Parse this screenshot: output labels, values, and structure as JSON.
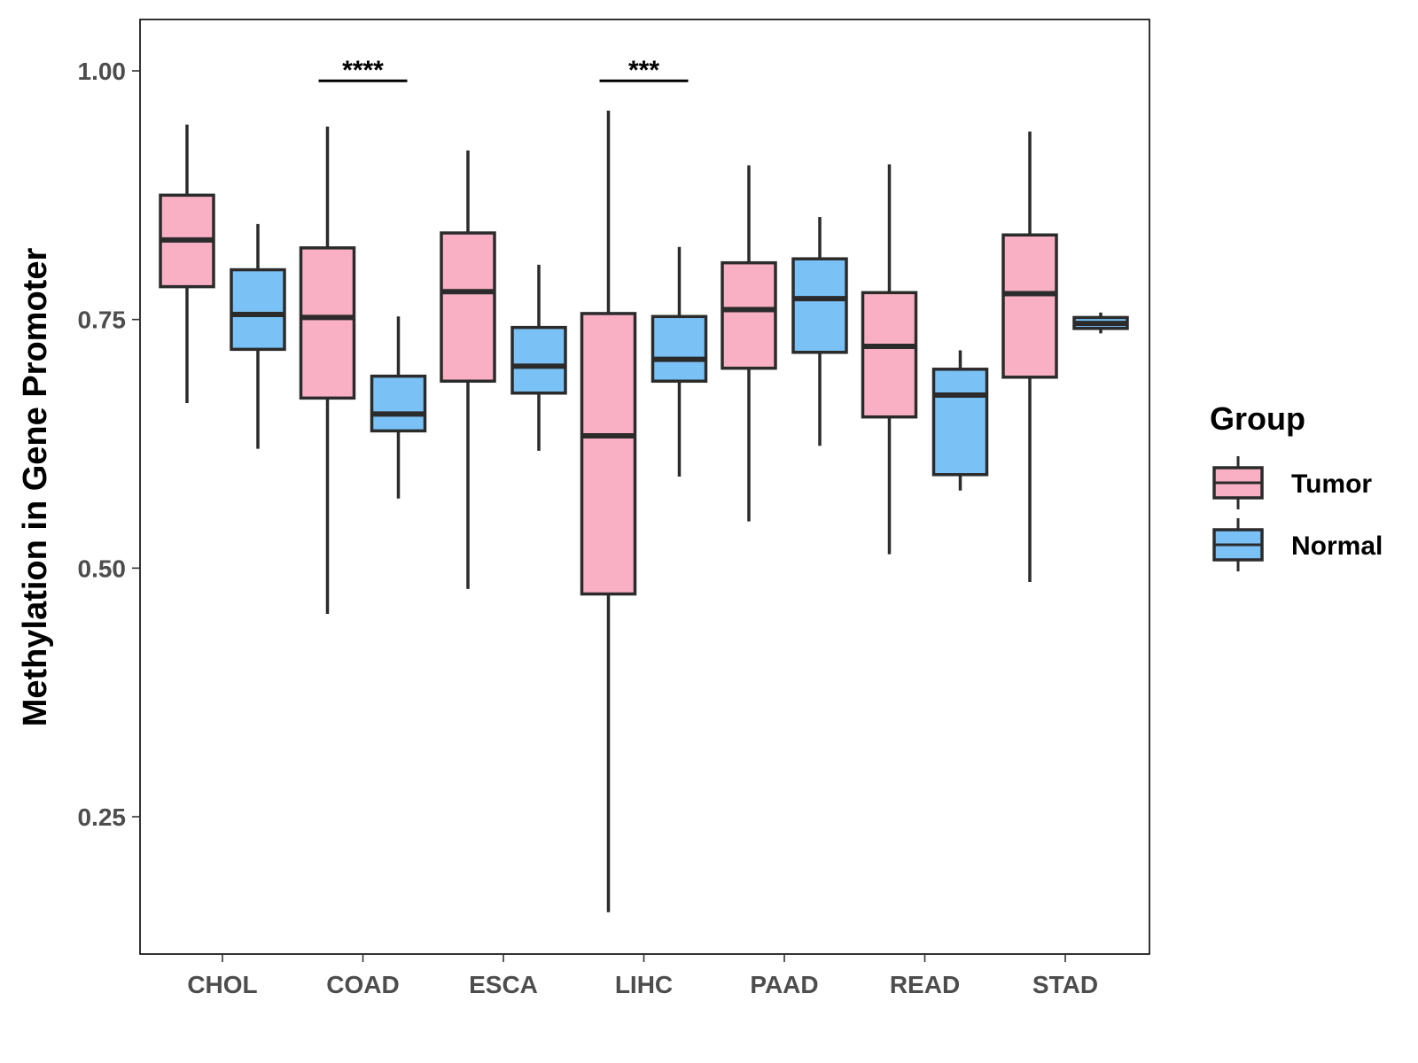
{
  "chart_data": {
    "type": "boxplot",
    "title": "",
    "xlabel": "",
    "ylabel": "Methylation in Gene Promoter",
    "ylim": [
      0.13,
      1.05
    ],
    "yticks": [
      0.25,
      0.5,
      0.75,
      1.0
    ],
    "ytick_labels": [
      "0.25",
      "0.50",
      "0.75",
      "1.00"
    ],
    "categories": [
      "CHOL",
      "COAD",
      "ESCA",
      "LIHC",
      "PAAD",
      "READ",
      "STAD"
    ],
    "legend": {
      "title": "Group",
      "position": "right",
      "entries": [
        {
          "name": "Tumor",
          "color": "#F9B0C4"
        },
        {
          "name": "Normal",
          "color": "#7AC2F6"
        }
      ]
    },
    "series": [
      {
        "name": "Tumor",
        "color": "#F9B0C4",
        "boxes": [
          {
            "category": "CHOL",
            "min": 0.666,
            "q1": 0.783,
            "median": 0.83,
            "q3": 0.875,
            "max": 0.946
          },
          {
            "category": "COAD",
            "min": 0.454,
            "q1": 0.671,
            "median": 0.752,
            "q3": 0.822,
            "max": 0.944
          },
          {
            "category": "ESCA",
            "min": 0.479,
            "q1": 0.688,
            "median": 0.778,
            "q3": 0.837,
            "max": 0.92
          },
          {
            "category": "LIHC",
            "min": 0.154,
            "q1": 0.474,
            "median": 0.633,
            "q3": 0.756,
            "max": 0.96
          },
          {
            "category": "PAAD",
            "min": 0.547,
            "q1": 0.701,
            "median": 0.76,
            "q3": 0.807,
            "max": 0.905
          },
          {
            "category": "READ",
            "min": 0.514,
            "q1": 0.652,
            "median": 0.723,
            "q3": 0.777,
            "max": 0.906
          },
          {
            "category": "STAD",
            "min": 0.486,
            "q1": 0.692,
            "median": 0.776,
            "q3": 0.835,
            "max": 0.939
          }
        ]
      },
      {
        "name": "Normal",
        "color": "#7AC2F6",
        "boxes": [
          {
            "category": "CHOL",
            "min": 0.62,
            "q1": 0.72,
            "median": 0.755,
            "q3": 0.8,
            "max": 0.846
          },
          {
            "category": "COAD",
            "min": 0.57,
            "q1": 0.638,
            "median": 0.655,
            "q3": 0.693,
            "max": 0.753
          },
          {
            "category": "ESCA",
            "min": 0.618,
            "q1": 0.676,
            "median": 0.703,
            "q3": 0.742,
            "max": 0.805
          },
          {
            "category": "LIHC",
            "min": 0.592,
            "q1": 0.688,
            "median": 0.71,
            "q3": 0.753,
            "max": 0.823
          },
          {
            "category": "PAAD",
            "min": 0.623,
            "q1": 0.717,
            "median": 0.771,
            "q3": 0.811,
            "max": 0.853
          },
          {
            "category": "READ",
            "min": 0.578,
            "q1": 0.594,
            "median": 0.674,
            "q3": 0.7,
            "max": 0.719
          },
          {
            "category": "STAD",
            "min": 0.736,
            "q1": 0.741,
            "median": 0.746,
            "q3": 0.752,
            "max": 0.757
          }
        ]
      }
    ],
    "annotations": [
      {
        "category": "COAD",
        "label": "****",
        "y": 0.99
      },
      {
        "category": "LIHC",
        "label": "***",
        "y": 0.99
      }
    ]
  }
}
